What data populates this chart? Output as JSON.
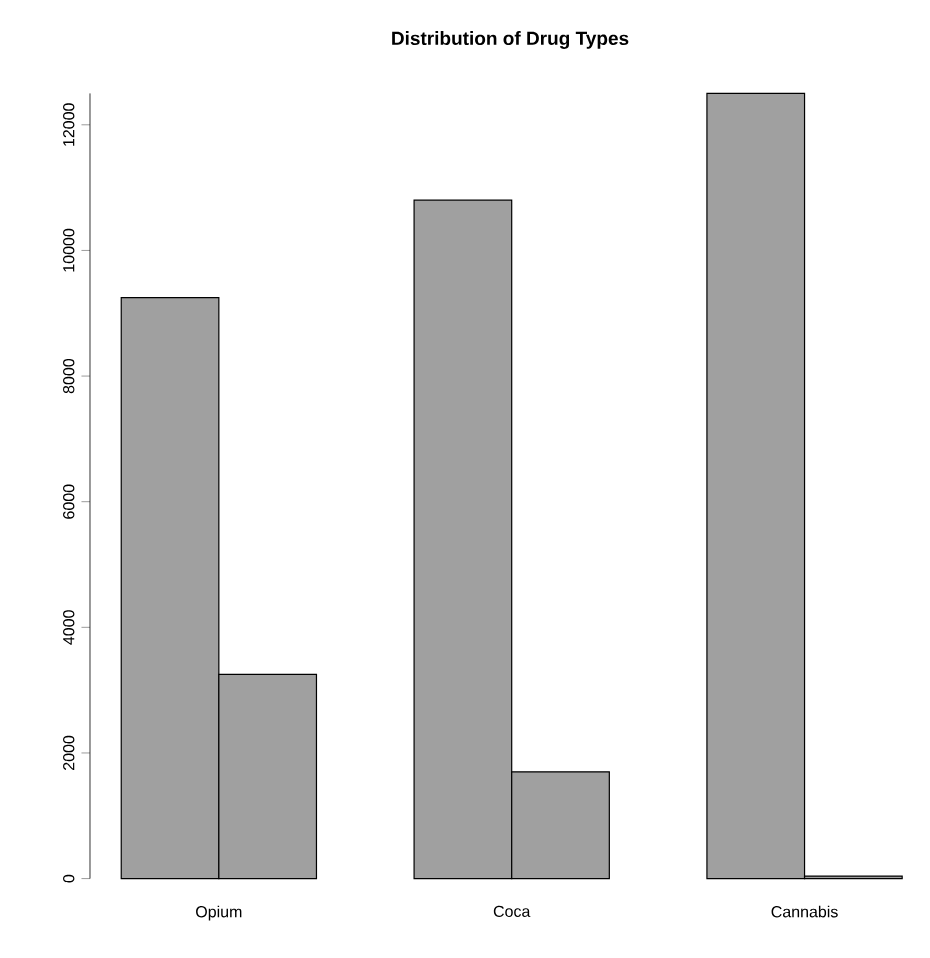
{
  "chart_data": {
    "type": "bar",
    "title": "Distribution of Drug Types",
    "categories": [
      "Opium",
      "Coca",
      "Cannabis"
    ],
    "series": [
      {
        "color": "#a0a0a0",
        "values": [
          9250,
          10800,
          12500
        ]
      },
      {
        "color": "#a0a0a0",
        "values": [
          3250,
          1700,
          40
        ]
      }
    ],
    "ylim": [
      0,
      12500
    ],
    "yticks": [
      0,
      2000,
      4000,
      6000,
      8000,
      10000,
      12000
    ]
  }
}
